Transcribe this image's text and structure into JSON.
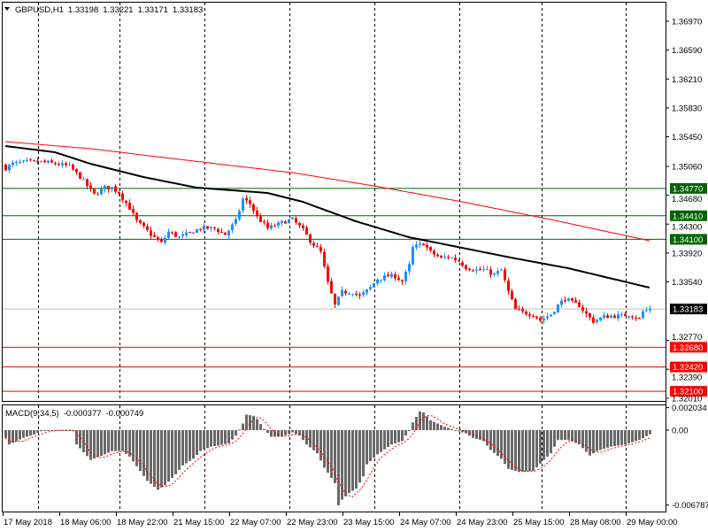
{
  "header": {
    "symbol": "GBPUSD,H1",
    "open": "1.33198",
    "high": "1.33221",
    "low": "1.33171",
    "close": "1.33183"
  },
  "macd_header": {
    "label": "MACD(9,34,5)",
    "main": "-0.000377",
    "signal": "-0.000749"
  },
  "colors": {
    "bull": "#1E90FF",
    "bear": "#FF0000",
    "ma_fast": "#000000",
    "ma_slow": "#FF0000",
    "support": "#FF0000",
    "resistance": "#006400",
    "histogram": "#696969",
    "signal": "#FF0000"
  },
  "chart_data": [
    {
      "type": "candlestick",
      "title": "GBPUSD,H1",
      "bars_total": 183,
      "price_axis_ticks": [
        "1.36970",
        "1.36590",
        "1.36210",
        "1.35830",
        "1.35450",
        "1.35060",
        "1.34680",
        "1.34300",
        "1.33920",
        "1.33540",
        "1.32770",
        "1.32390",
        "1.32010"
      ],
      "ylim": [
        1.3197,
        1.3725
      ],
      "time_labels": [
        "17 May 2018",
        "18 May 06:00",
        "18 May 22:00",
        "21 May 15:00",
        "22 May 07:00",
        "22 May 23:00",
        "23 May 15:00",
        "24 May 07:00",
        "24 May 23:00",
        "25 May 15:00",
        "28 May 08:00",
        "29 May 00:00"
      ],
      "close_path": [
        [
          0,
          1.35037
        ],
        [
          2,
          1.35095
        ],
        [
          6,
          1.35118
        ],
        [
          10,
          1.35118
        ],
        [
          14,
          1.35095
        ],
        [
          18,
          1.3506
        ],
        [
          21,
          1.3492
        ],
        [
          25,
          1.34687
        ],
        [
          28,
          1.3478
        ],
        [
          30,
          1.3478
        ],
        [
          32,
          1.34711
        ],
        [
          35,
          1.34513
        ],
        [
          37,
          1.34338
        ],
        [
          41,
          1.34163
        ],
        [
          44,
          1.34047
        ],
        [
          46,
          1.34198
        ],
        [
          49,
          1.34128
        ],
        [
          51,
          1.34163
        ],
        [
          55,
          1.34245
        ],
        [
          59,
          1.34245
        ],
        [
          62,
          1.34163
        ],
        [
          65,
          1.34338
        ],
        [
          67,
          1.34629
        ],
        [
          69,
          1.34571
        ],
        [
          71,
          1.34396
        ],
        [
          74,
          1.34245
        ],
        [
          76,
          1.3428
        ],
        [
          79,
          1.34338
        ],
        [
          81,
          1.34361
        ],
        [
          84,
          1.34221
        ],
        [
          86,
          1.34082
        ],
        [
          89,
          1.3393
        ],
        [
          91,
          1.33523
        ],
        [
          93,
          1.33231
        ],
        [
          95,
          1.33406
        ],
        [
          98,
          1.33406
        ],
        [
          100,
          1.33348
        ],
        [
          103,
          1.33464
        ],
        [
          105,
          1.33581
        ],
        [
          108,
          1.33616
        ],
        [
          110,
          1.33616
        ],
        [
          112,
          1.33546
        ],
        [
          114,
          1.33755
        ],
        [
          115,
          1.33988
        ],
        [
          118,
          1.34047
        ],
        [
          120,
          1.3393
        ],
        [
          123,
          1.33849
        ],
        [
          125,
          1.33872
        ],
        [
          128,
          1.33814
        ],
        [
          130,
          1.33732
        ],
        [
          133,
          1.33697
        ],
        [
          135,
          1.33697
        ],
        [
          138,
          1.33639
        ],
        [
          140,
          1.33697
        ],
        [
          142,
          1.33406
        ],
        [
          144,
          1.33173
        ],
        [
          146,
          1.33138
        ],
        [
          149,
          1.33115
        ],
        [
          151,
          1.33033
        ],
        [
          154,
          1.33115
        ],
        [
          156,
          1.33231
        ],
        [
          158,
          1.33325
        ],
        [
          160,
          1.33266
        ],
        [
          162,
          1.33231
        ],
        [
          164,
          1.33115
        ],
        [
          166,
          1.33022
        ],
        [
          169,
          1.3308
        ],
        [
          171,
          1.33092
        ],
        [
          174,
          1.33092
        ],
        [
          176,
          1.33115
        ],
        [
          179,
          1.33057
        ],
        [
          180,
          1.3315
        ],
        [
          182,
          1.33183
        ]
      ],
      "ma_fast_path": [
        [
          0,
          1.35328
        ],
        [
          14,
          1.35246
        ],
        [
          24,
          1.35095
        ],
        [
          39,
          1.3492
        ],
        [
          54,
          1.3478
        ],
        [
          74,
          1.34711
        ],
        [
          84,
          1.34594
        ],
        [
          99,
          1.34338
        ],
        [
          114,
          1.34128
        ],
        [
          129,
          1.33988
        ],
        [
          144,
          1.33849
        ],
        [
          159,
          1.3372
        ],
        [
          182,
          1.33464
        ]
      ],
      "ma_slow_path": [
        [
          0,
          1.35386
        ],
        [
          24,
          1.35293
        ],
        [
          49,
          1.35153
        ],
        [
          81,
          1.34978
        ],
        [
          104,
          1.34804
        ],
        [
          129,
          1.34594
        ],
        [
          154,
          1.34361
        ],
        [
          182,
          1.34082
        ]
      ],
      "levels": {
        "resistance": [
          "1.34770",
          "1.34410",
          "1.34100"
        ],
        "support": [
          "1.32680",
          "1.32420",
          "1.32100"
        ],
        "current": "1.33183"
      }
    },
    {
      "type": "bar",
      "title": "MACD(9,34,5)",
      "axis_ticks": [
        "0.002034",
        "0.00",
        "-0.006787"
      ],
      "ylim": [
        -0.0072,
        0.0026
      ],
      "histogram_path": [
        [
          0,
          -0.0007
        ],
        [
          1,
          -0.0013
        ],
        [
          3,
          -0.001
        ],
        [
          5,
          -0.0007
        ],
        [
          8,
          -0.0004
        ],
        [
          10,
          -0.0001
        ],
        [
          14,
          0.0
        ],
        [
          19,
          0.0
        ],
        [
          20,
          -0.0013
        ],
        [
          24,
          -0.0027
        ],
        [
          28,
          -0.0022
        ],
        [
          30,
          -0.0019
        ],
        [
          33,
          -0.0019
        ],
        [
          35,
          -0.0024
        ],
        [
          38,
          -0.0037
        ],
        [
          40,
          -0.0046
        ],
        [
          43,
          -0.0054
        ],
        [
          45,
          -0.005
        ],
        [
          48,
          -0.004
        ],
        [
          50,
          -0.0032
        ],
        [
          53,
          -0.0026
        ],
        [
          55,
          -0.0019
        ],
        [
          58,
          -0.0015
        ],
        [
          60,
          -0.0014
        ],
        [
          63,
          -0.0012
        ],
        [
          65,
          -0.0005
        ],
        [
          67,
          0.0006
        ],
        [
          68,
          0.0014
        ],
        [
          70,
          0.0013
        ],
        [
          71,
          0.001
        ],
        [
          73,
          0.0001
        ],
        [
          75,
          -0.0006
        ],
        [
          78,
          -0.0006
        ],
        [
          81,
          -0.0002
        ],
        [
          83,
          -0.0005
        ],
        [
          85,
          -0.0013
        ],
        [
          88,
          -0.0021
        ],
        [
          90,
          -0.0034
        ],
        [
          93,
          -0.0048
        ],
        [
          94,
          -0.0068
        ],
        [
          95,
          -0.0063
        ],
        [
          97,
          -0.0057
        ],
        [
          99,
          -0.0053
        ],
        [
          101,
          -0.0042
        ],
        [
          102,
          -0.0031
        ],
        [
          105,
          -0.0022
        ],
        [
          109,
          -0.0013
        ],
        [
          112,
          -0.001
        ],
        [
          114,
          0.0
        ],
        [
          115,
          0.0007
        ],
        [
          117,
          0.0017
        ],
        [
          118,
          0.0016
        ],
        [
          120,
          0.0009
        ],
        [
          122,
          0.0006
        ],
        [
          124,
          0.0003
        ],
        [
          126,
          0.0001
        ],
        [
          130,
          -0.0003
        ],
        [
          132,
          -0.0007
        ],
        [
          135,
          -0.001
        ],
        [
          137,
          -0.0018
        ],
        [
          140,
          -0.0026
        ],
        [
          142,
          -0.0035
        ],
        [
          145,
          -0.0038
        ],
        [
          149,
          -0.0037
        ],
        [
          152,
          -0.0027
        ],
        [
          154,
          -0.0021
        ],
        [
          156,
          -0.0009
        ],
        [
          159,
          -0.0009
        ],
        [
          162,
          -0.0013
        ],
        [
          165,
          -0.0023
        ],
        [
          167,
          -0.0019
        ],
        [
          171,
          -0.0015
        ],
        [
          175,
          -0.0013
        ],
        [
          179,
          -0.0009
        ],
        [
          182,
          -0.000377
        ]
      ],
      "signal_period": 5
    }
  ]
}
